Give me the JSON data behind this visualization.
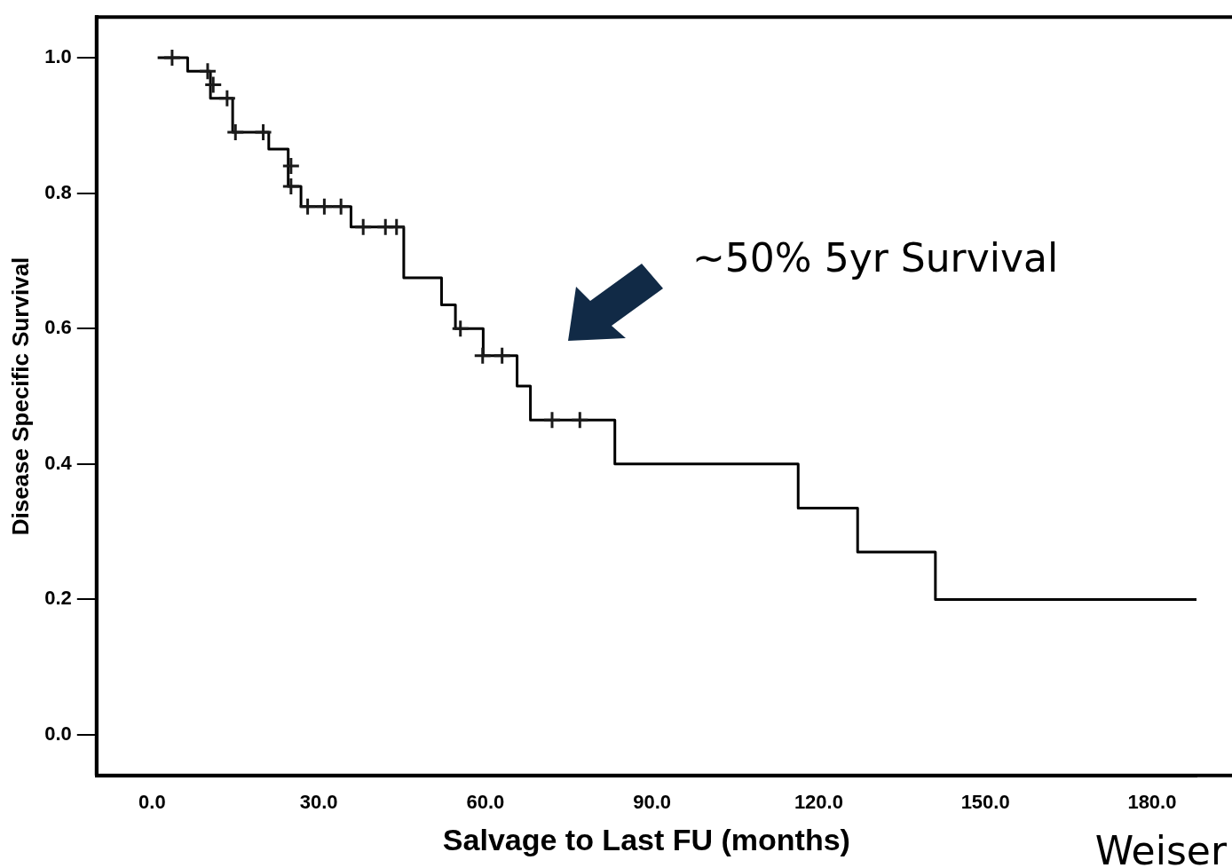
{
  "chart_data": {
    "type": "step",
    "xlabel": "Salvage to Last FU (months)",
    "ylabel": "Disease Specific Survival",
    "xlim": [
      -10,
      188
    ],
    "ylim": [
      -0.06,
      1.06
    ],
    "xticks": [
      {
        "value": 0,
        "label": "0.0"
      },
      {
        "value": 30,
        "label": "30.0"
      },
      {
        "value": 60,
        "label": "60.0"
      },
      {
        "value": 90,
        "label": "90.0"
      },
      {
        "value": 120,
        "label": "120.0"
      },
      {
        "value": 150,
        "label": "150.0"
      },
      {
        "value": 180,
        "label": "180.0"
      }
    ],
    "yticks": [
      {
        "value": 0,
        "label": "0.0"
      },
      {
        "value": 0.2,
        "label": "0.2"
      },
      {
        "value": 0.4,
        "label": "0.4"
      },
      {
        "value": 0.6,
        "label": "0.6"
      },
      {
        "value": 0.8,
        "label": "0.8"
      },
      {
        "value": 1,
        "label": "1.0"
      }
    ],
    "series": [
      {
        "color": "#000000",
        "marker": "none",
        "x": [
          1,
          6.4,
          10.5,
          14.5,
          21,
          24.5,
          26.8,
          35.8,
          45.3,
          52.1,
          54.6,
          59.6,
          65.7,
          68.1,
          83.3,
          116.3,
          127,
          141,
          188
        ],
        "values": [
          1.0,
          0.98,
          0.94,
          0.89,
          0.865,
          0.81,
          0.78,
          0.75,
          0.675,
          0.635,
          0.6,
          0.56,
          0.515,
          0.465,
          0.4,
          0.335,
          0.27,
          0.2,
          0.2
        ]
      },
      {
        "type": "scatter",
        "color": "#1a1a1a",
        "marker": "cross",
        "x": [
          3.6,
          10,
          11,
          13.5,
          15,
          20,
          25,
          25,
          28,
          31,
          34,
          38,
          42,
          44,
          55.5,
          59.5,
          63,
          72,
          77
        ],
        "values": [
          1.0,
          0.98,
          0.96,
          0.94,
          0.89,
          0.89,
          0.84,
          0.81,
          0.78,
          0.78,
          0.78,
          0.75,
          0.75,
          0.75,
          0.6,
          0.56,
          0.56,
          0.465,
          0.465
        ]
      }
    ],
    "annotations": [
      "~50% 5yr Survival",
      "Weiser"
    ]
  }
}
